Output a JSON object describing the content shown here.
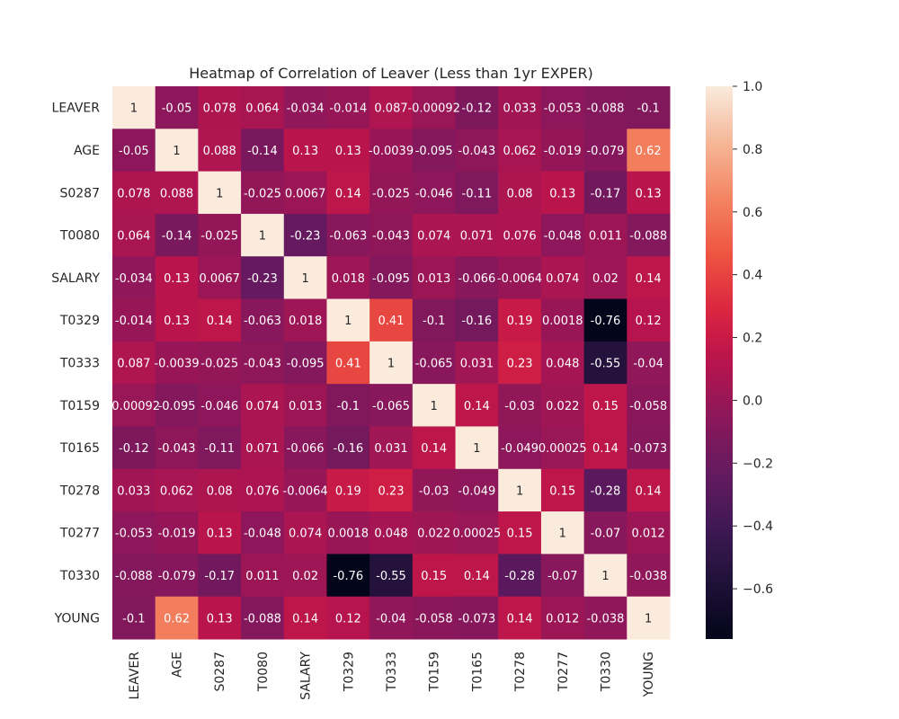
{
  "chart_data": {
    "type": "heatmap",
    "title": "Heatmap of Correlation of Leaver (Less than 1yr EXPER)",
    "labels": [
      "LEAVER",
      "AGE",
      "S0287",
      "T0080",
      "SALARY",
      "T0329",
      "T0333",
      "T0159",
      "T0165",
      "T0278",
      "T0277",
      "T0330",
      "YOUNG"
    ],
    "values": [
      [
        1,
        -0.05,
        0.078,
        0.064,
        -0.034,
        -0.014,
        0.087,
        -0.00092,
        -0.12,
        0.033,
        -0.053,
        -0.088,
        -0.1
      ],
      [
        -0.05,
        1,
        0.088,
        -0.14,
        0.13,
        0.13,
        -0.0039,
        -0.095,
        -0.043,
        0.062,
        -0.019,
        -0.079,
        0.62
      ],
      [
        0.078,
        0.088,
        1,
        -0.025,
        0.0067,
        0.14,
        -0.025,
        -0.046,
        -0.11,
        0.08,
        0.13,
        -0.17,
        0.13
      ],
      [
        0.064,
        -0.14,
        -0.025,
        1,
        -0.23,
        -0.063,
        -0.043,
        0.074,
        0.071,
        0.076,
        -0.048,
        0.011,
        -0.088
      ],
      [
        -0.034,
        0.13,
        0.0067,
        -0.23,
        1,
        0.018,
        -0.095,
        0.013,
        -0.066,
        -0.0064,
        0.074,
        0.02,
        0.14
      ],
      [
        -0.014,
        0.13,
        0.14,
        -0.063,
        0.018,
        1,
        0.41,
        -0.1,
        -0.16,
        0.19,
        0.0018,
        -0.76,
        0.12
      ],
      [
        0.087,
        -0.0039,
        -0.025,
        -0.043,
        -0.095,
        0.41,
        1,
        -0.065,
        0.031,
        0.23,
        0.048,
        -0.55,
        -0.04
      ],
      [
        -0.00092,
        -0.095,
        -0.046,
        0.074,
        0.013,
        -0.1,
        -0.065,
        1,
        0.14,
        -0.03,
        0.022,
        0.15,
        -0.058
      ],
      [
        -0.12,
        -0.043,
        -0.11,
        0.071,
        -0.066,
        -0.16,
        0.031,
        0.14,
        1,
        -0.049,
        0.00025,
        0.14,
        -0.073
      ],
      [
        0.033,
        0.062,
        0.08,
        0.076,
        -0.0064,
        0.19,
        0.23,
        -0.03,
        -0.049,
        1,
        0.15,
        -0.28,
        0.14
      ],
      [
        -0.053,
        -0.019,
        0.13,
        -0.048,
        0.074,
        0.0018,
        0.048,
        0.022,
        0.00025,
        0.15,
        1,
        -0.07,
        0.012
      ],
      [
        -0.088,
        -0.079,
        -0.17,
        0.011,
        0.02,
        -0.76,
        -0.55,
        0.15,
        0.14,
        -0.28,
        -0.07,
        1,
        -0.038
      ],
      [
        -0.1,
        0.62,
        0.13,
        -0.088,
        0.14,
        0.12,
        -0.04,
        -0.058,
        -0.073,
        0.14,
        0.012,
        -0.038,
        1
      ]
    ],
    "annotations": [
      [
        "1",
        "-0.05",
        "0.078",
        "0.064",
        "-0.034",
        "-0.014",
        "0.087",
        "-0.00092",
        "-0.12",
        "0.033",
        "-0.053",
        "-0.088",
        "-0.1"
      ],
      [
        "-0.05",
        "1",
        "0.088",
        "-0.14",
        "0.13",
        "0.13",
        "-0.0039",
        "-0.095",
        "-0.043",
        "0.062",
        "-0.019",
        "-0.079",
        "0.62"
      ],
      [
        "0.078",
        "0.088",
        "1",
        "-0.025",
        "0.0067",
        "0.14",
        "-0.025",
        "-0.046",
        "-0.11",
        "0.08",
        "0.13",
        "-0.17",
        "0.13"
      ],
      [
        "0.064",
        "-0.14",
        "-0.025",
        "1",
        "-0.23",
        "-0.063",
        "-0.043",
        "0.074",
        "0.071",
        "0.076",
        "-0.048",
        "0.011",
        "-0.088"
      ],
      [
        "-0.034",
        "0.13",
        "0.0067",
        "-0.23",
        "1",
        "0.018",
        "-0.095",
        "0.013",
        "-0.066",
        "-0.0064",
        "0.074",
        "0.02",
        "0.14"
      ],
      [
        "-0.014",
        "0.13",
        "0.14",
        "-0.063",
        "0.018",
        "1",
        "0.41",
        "-0.1",
        "-0.16",
        "0.19",
        "0.0018",
        "-0.76",
        "0.12"
      ],
      [
        "0.087",
        "-0.0039",
        "-0.025",
        "-0.043",
        "-0.095",
        "0.41",
        "1",
        "-0.065",
        "0.031",
        "0.23",
        "0.048",
        "-0.55",
        "-0.04"
      ],
      [
        "-0.00092",
        "-0.095",
        "-0.046",
        "0.074",
        "0.013",
        "-0.1",
        "-0.065",
        "1",
        "0.14",
        "-0.03",
        "0.022",
        "0.15",
        "-0.058"
      ],
      [
        "-0.12",
        "-0.043",
        "-0.11",
        "0.071",
        "-0.066",
        "-0.16",
        "0.031",
        "0.14",
        "1",
        "-0.049",
        "0.00025",
        "0.14",
        "-0.073"
      ],
      [
        "0.033",
        "0.062",
        "0.08",
        "0.076",
        "-0.0064",
        "0.19",
        "0.23",
        "-0.03",
        "-0.049",
        "1",
        "0.15",
        "-0.28",
        "0.14"
      ],
      [
        "-0.053",
        "-0.019",
        "0.13",
        "-0.048",
        "0.074",
        "0.0018",
        "0.048",
        "0.022",
        "0.00025",
        "0.15",
        "1",
        "-0.07",
        "0.012"
      ],
      [
        "-0.088",
        "-0.079",
        "-0.17",
        "0.011",
        "0.02",
        "-0.76",
        "-0.55",
        "0.15",
        "0.14",
        "-0.28",
        "-0.07",
        "1",
        "-0.038"
      ],
      [
        "-0.1",
        "0.62",
        "0.13",
        "-0.088",
        "0.14",
        "0.12",
        "-0.04",
        "-0.058",
        "-0.073",
        "0.14",
        "0.012",
        "-0.038",
        "1"
      ]
    ],
    "colormap": "rocket",
    "vmin": -0.76,
    "vmax": 1.0,
    "colorbar_ticks": [
      1.0,
      0.8,
      0.6,
      0.4,
      0.2,
      0.0,
      -0.2,
      -0.4,
      -0.6
    ],
    "colorbar_tick_labels": [
      "1.0",
      "0.8",
      "0.6",
      "0.4",
      "0.2",
      "0.0",
      "−0.2",
      "−0.4",
      "−0.6"
    ],
    "legend": "colorbar-right",
    "grid": false
  }
}
